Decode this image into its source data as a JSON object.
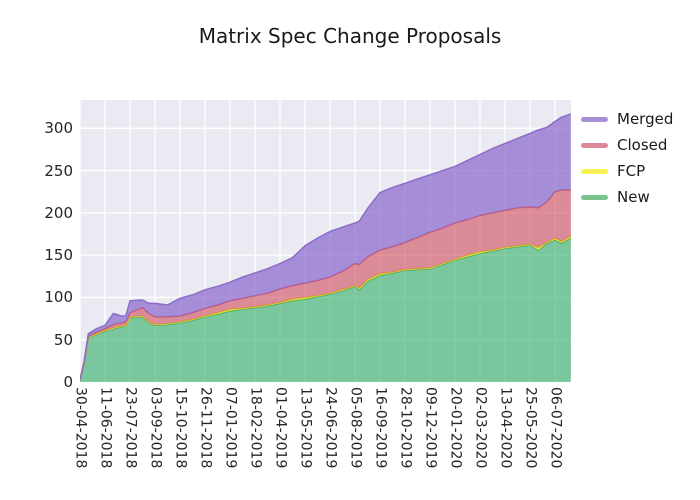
{
  "chart_data": {
    "type": "area",
    "stacked": true,
    "title": "Matrix Spec Change Proposals",
    "background": {
      "figure": "#ffffff",
      "plot": "#eaeaf2",
      "grid": "#ffffff"
    },
    "y_axis": {
      "ticks": [
        0,
        50,
        100,
        150,
        200,
        250,
        300
      ],
      "visible_max": 333
    },
    "x_axis": {
      "tick_interval_weeks": 6,
      "tick_labels": [
        "30-04-2018",
        "11-06-2018",
        "23-07-2018",
        "03-09-2018",
        "15-10-2018",
        "26-11-2018",
        "07-01-2019",
        "18-02-2019",
        "01-04-2019",
        "13-05-2019",
        "24-06-2019",
        "05-08-2019",
        "16-09-2019",
        "28-10-2019",
        "09-12-2019",
        "20-01-2020",
        "02-03-2020",
        "13-04-2020",
        "25-05-2020",
        "06-07-2020"
      ]
    },
    "legend": [
      {
        "label": "Merged",
        "color": "#a78fd6"
      },
      {
        "label": "Closed",
        "color": "#de8997"
      },
      {
        "label": "FCP",
        "color": "#f7f355"
      },
      {
        "label": "New",
        "color": "#79c48d"
      }
    ],
    "series": [
      {
        "name": "New",
        "fill": "rgba(61,179,112,0.65)",
        "edge": "#47a96b"
      },
      {
        "name": "FCP",
        "fill": "rgba(244,238,30,0.75)",
        "edge": "#ded42a"
      },
      {
        "name": "Closed",
        "fill": "rgba(210,80,95,0.62)",
        "edge": "#c75d72"
      },
      {
        "name": "Merged",
        "fill": "rgba(140,105,205,0.72)",
        "edge": "#8d6cc8"
      }
    ],
    "columns": [
      "week",
      "New",
      "FCP",
      "Closed",
      "Merged"
    ],
    "points": [
      [
        0,
        2,
        0,
        0,
        1
      ],
      [
        1,
        22,
        0,
        1,
        2
      ],
      [
        2,
        52,
        1,
        1,
        3
      ],
      [
        4,
        56,
        1,
        2,
        4
      ],
      [
        6,
        60,
        1,
        2,
        4
      ],
      [
        8,
        63,
        1,
        4,
        13
      ],
      [
        10,
        65,
        1,
        4,
        8
      ],
      [
        11,
        66,
        1,
        4,
        7
      ],
      [
        12,
        76,
        1,
        5,
        14
      ],
      [
        15,
        77,
        1,
        10,
        9
      ],
      [
        16.5,
        70,
        1,
        10,
        12
      ],
      [
        18,
        67,
        1,
        9,
        16
      ],
      [
        21,
        68,
        1,
        8,
        14
      ],
      [
        24,
        70,
        1,
        7,
        21
      ],
      [
        27,
        73,
        1,
        8,
        21
      ],
      [
        30,
        77,
        1,
        9,
        22
      ],
      [
        33,
        80,
        2,
        9,
        22
      ],
      [
        36,
        84,
        2,
        10,
        22
      ],
      [
        39,
        86,
        1,
        12,
        25
      ],
      [
        42,
        88,
        1,
        13,
        27
      ],
      [
        45,
        90,
        1,
        14,
        29
      ],
      [
        48,
        93,
        1,
        16,
        30
      ],
      [
        51,
        96,
        2,
        16,
        33
      ],
      [
        54,
        98,
        2,
        17,
        44
      ],
      [
        57,
        101,
        1,
        18,
        50
      ],
      [
        60,
        104,
        1,
        19,
        54
      ],
      [
        63,
        108,
        1,
        22,
        52
      ],
      [
        66,
        113,
        1,
        26,
        48
      ],
      [
        67,
        109,
        2,
        28,
        51
      ],
      [
        69,
        119,
        2,
        27,
        57
      ],
      [
        72,
        126,
        2,
        28,
        68
      ],
      [
        75,
        129,
        1,
        30,
        70
      ],
      [
        78,
        132,
        1,
        32,
        70
      ],
      [
        81,
        133,
        1,
        37,
        69
      ],
      [
        84,
        134,
        1,
        42,
        68
      ],
      [
        87,
        139,
        1,
        42,
        68
      ],
      [
        90,
        144,
        1,
        43,
        67
      ],
      [
        93,
        148,
        2,
        42,
        70
      ],
      [
        96,
        152,
        2,
        43,
        72
      ],
      [
        99,
        155,
        1,
        44,
        76
      ],
      [
        102,
        158,
        1,
        44,
        79
      ],
      [
        105,
        160,
        1,
        45,
        82
      ],
      [
        108,
        162,
        1,
        44,
        87
      ],
      [
        110,
        156,
        3,
        47,
        92
      ],
      [
        112,
        164,
        1,
        48,
        88
      ],
      [
        114,
        168,
        2,
        55,
        83
      ],
      [
        115.5,
        164,
        2,
        61,
        86
      ],
      [
        117.8,
        170,
        2,
        55,
        90
      ]
    ]
  }
}
